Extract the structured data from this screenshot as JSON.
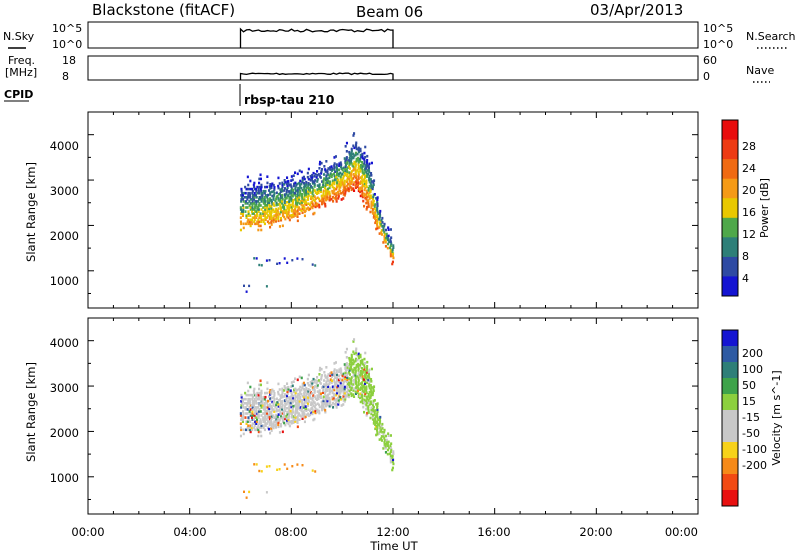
{
  "header": {
    "station": "Blackstone (fitACF)",
    "beam": "Beam 06",
    "date": "03/Apr/2013"
  },
  "status_panel": {
    "nsky_label": "N.Sky",
    "nsky_ticks": [
      "10^5",
      "10^0"
    ],
    "nsearch_label": "N.Search",
    "nsearch_ticks": [
      "10^5",
      "10^0"
    ],
    "freq_label_1": "Freq.",
    "freq_label_2": "[MHz]",
    "freq_ticks": [
      "18",
      "8"
    ],
    "nave_label": "Nave",
    "nave_ticks": [
      "60",
      "0"
    ],
    "cpid_label": "CPID",
    "cpid_value": "rbsp-tau 210"
  },
  "x_axis": {
    "ticks": [
      "00:00",
      "04:00",
      "08:00",
      "12:00",
      "16:00",
      "20:00",
      "00:00"
    ],
    "title": "Time UT"
  },
  "colors": {
    "power": [
      "#1414d2",
      "#2e4aa3",
      "#2e7f78",
      "#4fa84a",
      "#e8c800",
      "#f59a16",
      "#f06a12",
      "#ee3a12",
      "#e80c0c"
    ],
    "velocity": [
      "#e81010",
      "#f24a12",
      "#f68a18",
      "#f7d21a",
      "#c8c8c8",
      "#c8c8c8",
      "#8ccf3e",
      "#3ea34a",
      "#2e7f78",
      "#2e5aa3",
      "#1414d2"
    ]
  },
  "chart_data": [
    {
      "type": "heatmap",
      "name": "power",
      "ylabel": "Slant Range [km]",
      "xlim": [
        "00:00",
        "24:00"
      ],
      "ylim": [
        180,
        4500
      ],
      "yticks": [
        "1000",
        "2000",
        "3000",
        "4000"
      ],
      "colorbar": {
        "label": "Power [dB]",
        "ticks": [
          "4",
          "8",
          "12",
          "16",
          "20",
          "24",
          "28"
        ],
        "range": [
          0,
          30
        ]
      },
      "observation_window_hours": [
        6.0,
        12.0
      ],
      "echo_band": {
        "hours": [
          6.0,
          7.0,
          8.0,
          9.0,
          10.0,
          10.5,
          11.0,
          11.5,
          12.0
        ],
        "range_lower_km": [
          2000,
          2000,
          2150,
          2400,
          2650,
          2800,
          2400,
          1700,
          1200
        ],
        "range_upper_km": [
          2800,
          2900,
          3000,
          3150,
          3450,
          3850,
          3400,
          2200,
          1500
        ],
        "peak_power_db": [
          18,
          20,
          20,
          22,
          24,
          26,
          22,
          24,
          22
        ]
      },
      "weak_echoes": [
        {
          "hours": [
            6.5,
            9.0
          ],
          "range_km": 1200
        },
        {
          "hours": [
            6.0,
            7.0
          ],
          "range_km": 600
        }
      ]
    },
    {
      "type": "heatmap",
      "name": "velocity",
      "ylabel": "Slant Range [km]",
      "xlim": [
        "00:00",
        "24:00"
      ],
      "ylim": [
        180,
        4500
      ],
      "yticks": [
        "1000",
        "2000",
        "3000",
        "4000"
      ],
      "colorbar": {
        "label": "Velocity [m s^-1]",
        "ticks": [
          "200",
          "100",
          "50",
          "15",
          "-15",
          "-50",
          "-100",
          "-200"
        ]
      },
      "observation_window_hours": [
        6.0,
        12.0
      ],
      "dominant_velocity": "ground scatter (|v| < 15 m/s)",
      "high_range_velocity_m_s": 30
    }
  ]
}
